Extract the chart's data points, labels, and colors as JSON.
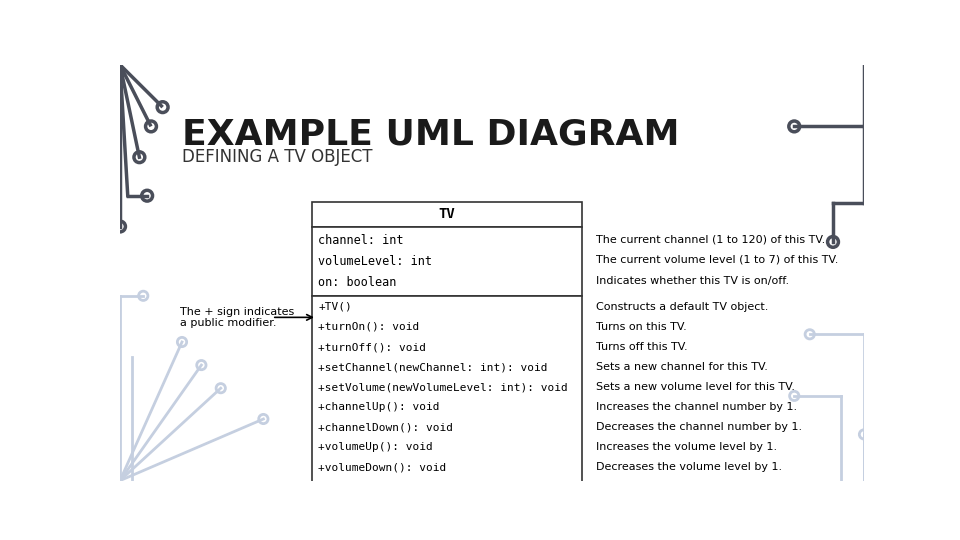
{
  "title": "EXAMPLE UML DIAGRAM",
  "subtitle": "DEFINING A TV OBJECT",
  "bg_color": "#ffffff",
  "title_color": "#1a1a1a",
  "subtitle_color": "#333333",
  "class_name": "TV",
  "attributes": [
    "channel: int",
    "volumeLevel: int",
    "on: boolean"
  ],
  "methods": [
    "+TV()",
    "+turnOn(): void",
    "+turnOff(): void",
    "+setChannel(newChannel: int): void",
    "+setVolume(newVolumeLevel: int): void",
    "+channelUp(): void",
    "+channelDown(): void",
    "+volumeUp(): void",
    "+volumeDown(): void"
  ],
  "attr_comments": [
    "The current channel (1 to 120) of this TV.",
    "The current volume level (1 to 7) of this TV.",
    "Indicates whether this TV is on/off."
  ],
  "method_comments": [
    "Constructs a default TV object.",
    "Turns on this TV.",
    "Turns off this TV.",
    "Sets a new channel for this TV.",
    "Sets a new volume level for this TV.",
    "Increases the channel number by 1.",
    "Decreases the channel number by 1.",
    "Increases the volume level by 1.",
    "Decreases the volume level by 1."
  ],
  "annotation_text": "The + sign indicates\na public modifier.",
  "circuit_dark": "#4a4e5a",
  "circuit_light": "#c5cfe0"
}
